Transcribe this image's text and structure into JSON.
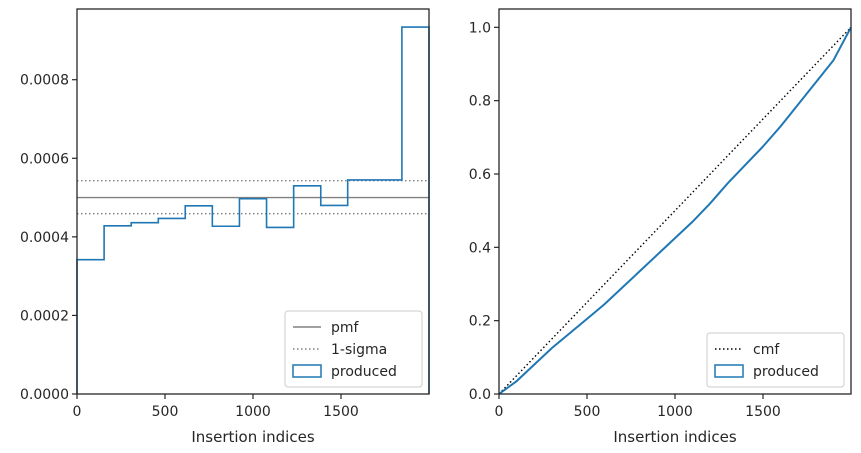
{
  "chart_data": [
    {
      "type": "histogram-step",
      "xlabel": "Insertion indices",
      "ylabel": "",
      "xlim": [
        0,
        2000
      ],
      "ylim": [
        0,
        0.00098
      ],
      "xticks": [
        0,
        500,
        1000,
        1500
      ],
      "xtick_labels": [
        "0",
        "500",
        "1000",
        "1500"
      ],
      "yticks": [
        0,
        0.0002,
        0.0004,
        0.0006,
        0.0008
      ],
      "ytick_labels": [
        "0.0000",
        "0.0002",
        "0.0004",
        "0.0006",
        "0.0008"
      ],
      "grid": false,
      "legend_position": "lower-right",
      "reference_lines": [
        {
          "name": "pmf",
          "style": "solid",
          "color": "#808080",
          "y": 0.0005
        },
        {
          "name": "1-sigma",
          "style": "dotted",
          "color": "#808080",
          "y": 0.000543
        },
        {
          "name": "1-sigma",
          "style": "dotted",
          "color": "#808080",
          "y": 0.000459,
          "in_legend": false
        }
      ],
      "series": [
        {
          "name": "produced",
          "color": "#1f77b4",
          "bin_edges": [
            0,
            154,
            308,
            462,
            615,
            769,
            923,
            1077,
            1231,
            1385,
            1538,
            1692,
            1846,
            2000
          ],
          "values": [
            0.000342,
            0.000428,
            0.000436,
            0.000447,
            0.000479,
            0.000427,
            0.000497,
            0.000424,
            0.00053,
            0.00048,
            0.000545,
            0.000545,
            0.000934
          ]
        }
      ],
      "legend": [
        "pmf",
        "1-sigma",
        "produced"
      ]
    },
    {
      "type": "line",
      "xlabel": "Insertion indices",
      "ylabel": "",
      "xlim": [
        0,
        2000
      ],
      "ylim": [
        0,
        1.05
      ],
      "xticks": [
        0,
        500,
        1000,
        1500
      ],
      "xtick_labels": [
        "0",
        "500",
        "1000",
        "1500"
      ],
      "yticks": [
        0,
        0.2,
        0.4,
        0.6,
        0.8,
        1.0
      ],
      "ytick_labels": [
        "0.0",
        "0.2",
        "0.4",
        "0.6",
        "0.8",
        "1.0"
      ],
      "grid": false,
      "legend_position": "lower-right",
      "series": [
        {
          "name": "cmf",
          "style": "dotted",
          "color": "#000000",
          "x": [
            0,
            2000
          ],
          "y": [
            0,
            1.0
          ]
        },
        {
          "name": "produced",
          "color": "#1f77b4",
          "x": [
            0,
            100,
            200,
            300,
            400,
            500,
            600,
            700,
            800,
            900,
            1000,
            1100,
            1200,
            1300,
            1400,
            1500,
            1600,
            1700,
            1800,
            1900,
            2000
          ],
          "y": [
            0,
            0.035,
            0.08,
            0.125,
            0.165,
            0.205,
            0.245,
            0.29,
            0.335,
            0.38,
            0.425,
            0.47,
            0.52,
            0.575,
            0.625,
            0.675,
            0.73,
            0.79,
            0.85,
            0.91,
            1.0
          ]
        }
      ],
      "legend": [
        "cmf",
        "produced"
      ]
    }
  ]
}
